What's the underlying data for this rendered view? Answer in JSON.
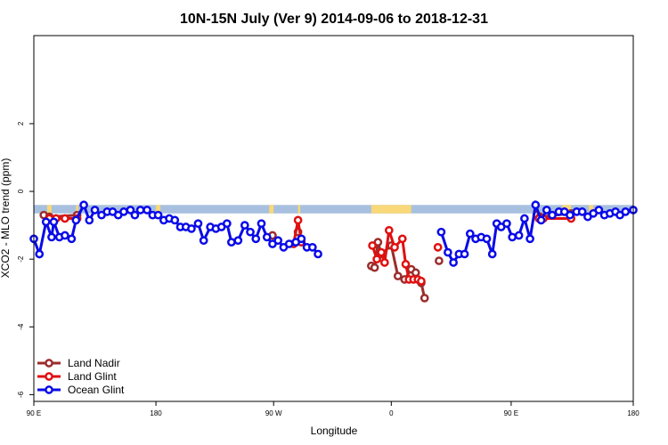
{
  "chart_data": {
    "type": "line",
    "title": "10N-15N July (Ver 9)   2014-09-06 to 2018-12-31",
    "xlabel": "Longitude",
    "ylabel": "XCO2 - MLO trend (ppm)",
    "xlim": [
      -90,
      180
    ],
    "ylim": [
      -6.2,
      4.6
    ],
    "x_ticks": [
      -90,
      -35,
      18,
      71,
      125,
      180
    ],
    "x_tick_labels": [
      "90 E",
      "180",
      "90 W",
      "0",
      "90 E",
      "180"
    ],
    "y_ticks": [
      -6,
      -4,
      -2,
      0,
      2
    ],
    "y_tick_labels": [
      "-6",
      "-4",
      "-2",
      "0",
      "2"
    ],
    "grid": false,
    "legend_position": "bottom-left",
    "land_band": {
      "y_range": [
        -0.65,
        -0.4
      ],
      "ocean_color": "#A8C0E0",
      "land_color": "#F8D878",
      "land_segments": [
        [
          -84,
          -82
        ],
        [
          -71,
          -70
        ],
        [
          -35,
          -33
        ],
        [
          16,
          18
        ],
        [
          29,
          30
        ],
        [
          62,
          80
        ],
        [
          135,
          137
        ],
        [
          148,
          152
        ],
        [
          160,
          162
        ]
      ]
    },
    "series": [
      {
        "name": "Land Nadir",
        "color": "#9B2D2D",
        "segments": [
          [
            [
              -85.5,
              -0.7
            ],
            [
              -83,
              -0.75
            ],
            [
              -70.5,
              -0.7
            ]
          ],
          [
            [
              17.5,
              -1.3
            ]
          ],
          [
            [
              29,
              -1.2
            ]
          ],
          [
            [
              62,
              -2.2
            ],
            [
              63.5,
              -2.25
            ],
            [
              65,
              -1.5
            ],
            [
              66.5,
              -1.85
            ],
            [
              71,
              -1.6
            ],
            [
              74,
              -2.5
            ],
            [
              77,
              -2.6
            ],
            [
              80,
              -2.3
            ],
            [
              82,
              -2.4
            ],
            [
              84.5,
              -2.7
            ],
            [
              86,
              -3.15
            ]
          ],
          [
            [
              92.5,
              -2.05
            ]
          ],
          [
            [
              136.5,
              -0.7
            ],
            [
              138,
              -0.75
            ],
            [
              152,
              -0.65
            ]
          ]
        ]
      },
      {
        "name": "Land Glint",
        "color": "#E01010",
        "segments": [
          [
            [
              -83,
              -0.8
            ],
            [
              -80,
              -0.8
            ],
            [
              -76,
              -0.8
            ],
            [
              -70.5,
              -0.8
            ]
          ],
          [
            [
              27,
              -1.55
            ],
            [
              29,
              -0.85
            ],
            [
              30.5,
              -1.5
            ]
          ],
          [
            [
              62.5,
              -1.6
            ],
            [
              64.5,
              -2
            ],
            [
              66.5,
              -1.8
            ],
            [
              68,
              -2.1
            ],
            [
              70,
              -1.15
            ],
            [
              72.5,
              -1.65
            ],
            [
              76,
              -1.4
            ],
            [
              77.5,
              -2.15
            ],
            [
              79,
              -2.6
            ],
            [
              81,
              -2.6
            ],
            [
              83,
              -2.6
            ],
            [
              84.5,
              -2.65
            ]
          ],
          [
            [
              92,
              -1.65
            ]
          ],
          [
            [
              137.5,
              -0.8
            ],
            [
              139.5,
              -0.8
            ],
            [
              152,
              -0.8
            ]
          ]
        ]
      },
      {
        "name": "Ocean Glint",
        "color": "#0A0AE8",
        "segments": [
          [
            [
              -90,
              -1.4
            ],
            [
              -87.5,
              -1.85
            ],
            [
              -84.5,
              -0.9
            ],
            [
              -82,
              -1.35
            ],
            [
              -81,
              -0.9
            ],
            [
              -78.5,
              -1.35
            ],
            [
              -76,
              -1.3
            ],
            [
              -73,
              -1.4
            ],
            [
              -71,
              -0.85
            ],
            [
              -67.5,
              -0.4
            ],
            [
              -65,
              -0.85
            ],
            [
              -62.5,
              -0.55
            ],
            [
              -59.5,
              -0.7
            ],
            [
              -57,
              -0.6
            ],
            [
              -54.5,
              -0.6
            ],
            [
              -52,
              -0.7
            ],
            [
              -49.5,
              -0.6
            ],
            [
              -46.5,
              -0.55
            ],
            [
              -44.5,
              -0.7
            ],
            [
              -42,
              -0.55
            ],
            [
              -39,
              -0.55
            ],
            [
              -36.5,
              -0.7
            ],
            [
              -34,
              -0.7
            ],
            [
              -31.5,
              -0.85
            ],
            [
              -29,
              -0.8
            ],
            [
              -26.5,
              -0.85
            ],
            [
              -24,
              -1.05
            ],
            [
              -21.5,
              -1.05
            ],
            [
              -19,
              -1.1
            ],
            [
              -16,
              -0.95
            ],
            [
              -13.5,
              -1.45
            ],
            [
              -10.5,
              -1.05
            ],
            [
              -8,
              -1.1
            ],
            [
              -5.5,
              -1.05
            ],
            [
              -3,
              -0.95
            ],
            [
              -1,
              -1.5
            ],
            [
              2,
              -1.45
            ],
            [
              5,
              -1.0
            ],
            [
              7.5,
              -1.2
            ],
            [
              10,
              -1.4
            ],
            [
              12.5,
              -0.95
            ],
            [
              15,
              -1.35
            ],
            [
              17.5,
              -1.55
            ],
            [
              20,
              -1.45
            ],
            [
              22.5,
              -1.65
            ],
            [
              25,
              -1.55
            ],
            [
              28,
              -1.5
            ],
            [
              30.5,
              -1.4
            ],
            [
              33,
              -1.65
            ],
            [
              35.5,
              -1.65
            ],
            [
              38,
              -1.85
            ]
          ],
          [
            [
              93.5,
              -1.2
            ],
            [
              96.5,
              -1.8
            ],
            [
              99,
              -2.1
            ],
            [
              101.5,
              -1.85
            ],
            [
              104,
              -1.85
            ],
            [
              106.5,
              -1.25
            ],
            [
              109,
              -1.4
            ],
            [
              111.5,
              -1.35
            ],
            [
              114,
              -1.4
            ],
            [
              116.5,
              -1.85
            ],
            [
              118.5,
              -0.95
            ],
            [
              120.5,
              -1.05
            ],
            [
              123,
              -0.95
            ],
            [
              125.5,
              -1.35
            ],
            [
              128.5,
              -1.3
            ],
            [
              131,
              -0.8
            ],
            [
              133.5,
              -1.4
            ],
            [
              136,
              -0.4
            ],
            [
              138.5,
              -0.85
            ],
            [
              141,
              -0.55
            ],
            [
              143.5,
              -0.7
            ],
            [
              146.5,
              -0.6
            ],
            [
              149,
              -0.6
            ],
            [
              151.5,
              -0.7
            ],
            [
              154.5,
              -0.6
            ],
            [
              157,
              -0.6
            ],
            [
              159.5,
              -0.75
            ],
            [
              162,
              -0.65
            ],
            [
              164.5,
              -0.55
            ],
            [
              167,
              -0.7
            ],
            [
              169.5,
              -0.65
            ],
            [
              172,
              -0.6
            ],
            [
              174,
              -0.7
            ],
            [
              176.5,
              -0.6
            ],
            [
              180,
              -0.55
            ]
          ]
        ]
      }
    ]
  }
}
